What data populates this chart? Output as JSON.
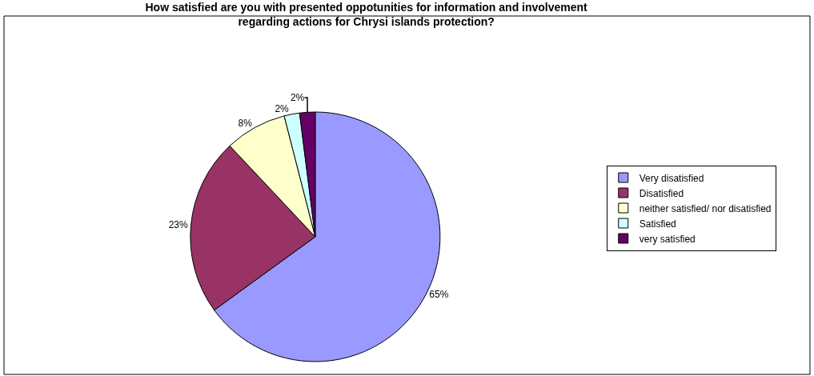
{
  "chart_data": {
    "type": "pie",
    "title": "How satisfied are you with presented oppotunities for information and involvement\nregarding actions for Chrysi islands protection?",
    "categories": [
      "Very disatisfied",
      "Disatisfied",
      "neither satisfied/ nor disatisfied",
      "Satisfied",
      "very satisfied"
    ],
    "values": [
      65,
      23,
      8,
      2,
      2
    ],
    "value_labels": [
      "65%",
      "23%",
      "8%",
      "2%",
      "2%"
    ],
    "colors": [
      "#9999ff",
      "#993366",
      "#ffffcc",
      "#ccffff",
      "#660066"
    ],
    "legend": "right"
  }
}
